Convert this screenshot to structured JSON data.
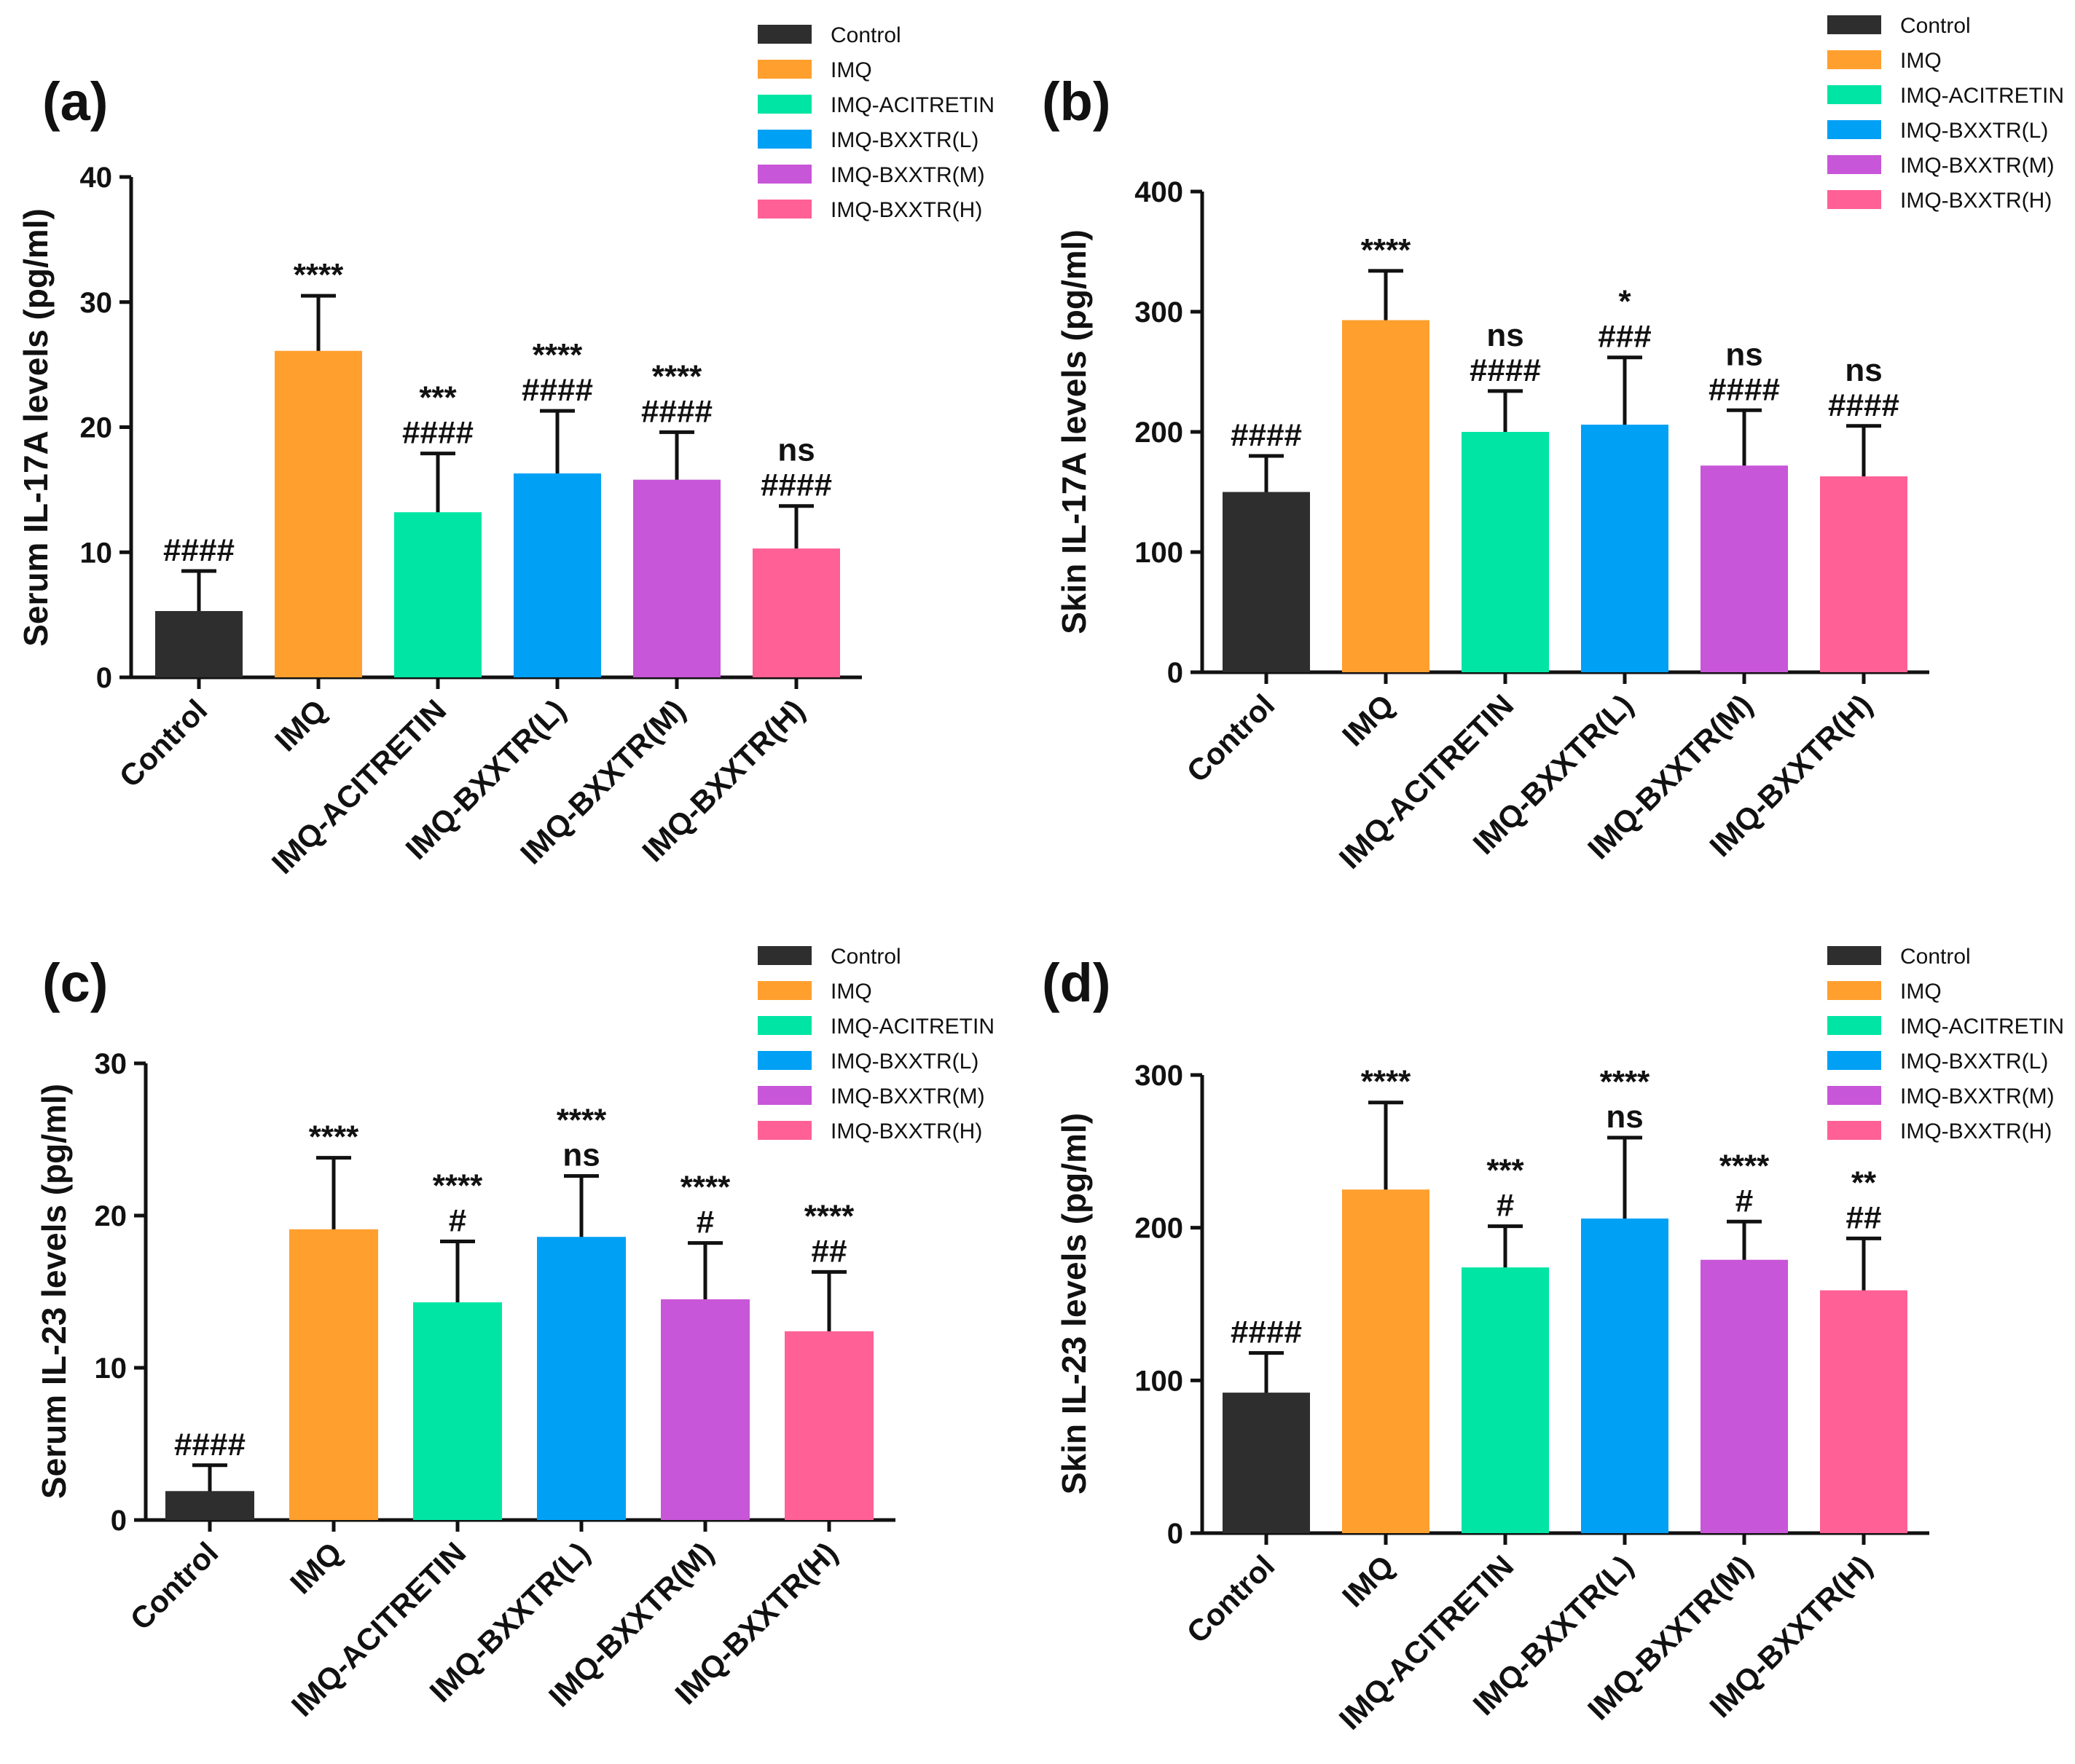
{
  "chart_data": [
    {
      "panel": "(a)",
      "type": "bar",
      "ylabel": "Serum IL-17A levels (pg/ml)",
      "xlabel": "",
      "categories": [
        "Control",
        "IMQ",
        "IMQ-ACITRETIN",
        "IMQ-BXXTR(L)",
        "IMQ-BXXTR(M)",
        "IMQ-BXXTR(H)"
      ],
      "values": [
        5.3,
        26.1,
        13.2,
        16.3,
        15.8,
        10.3
      ],
      "errors": [
        3.2,
        4.4,
        4.7,
        5.0,
        3.8,
        3.4
      ],
      "ylim": [
        0,
        40
      ],
      "yticks": [
        0,
        10,
        20,
        30,
        40
      ],
      "annotations": [
        [
          "####"
        ],
        [
          "****"
        ],
        [
          "***",
          "####"
        ],
        [
          "****",
          "####"
        ],
        [
          "****",
          "####"
        ],
        [
          "ns",
          "####"
        ]
      ],
      "legend": [
        "Control",
        "IMQ",
        "IMQ-ACITRETIN",
        "IMQ-BXXTR(L)",
        "IMQ-BXXTR(M)",
        "IMQ-BXXTR(H)"
      ],
      "legend_position": "top-right"
    },
    {
      "panel": "(b)",
      "type": "bar",
      "ylabel": "Skin IL-17A levels (pg/ml)",
      "xlabel": "",
      "categories": [
        "Control",
        "IMQ",
        "IMQ-ACITRETIN",
        "IMQ-BXXTR(L)",
        "IMQ-BXXTR(M)",
        "IMQ-BXXTR(H)"
      ],
      "values": [
        150,
        293,
        200,
        206,
        172,
        163
      ],
      "errors": [
        30,
        41,
        34,
        56,
        46,
        42
      ],
      "ylim": [
        0,
        400
      ],
      "yticks": [
        0,
        100,
        200,
        300,
        400
      ],
      "annotations": [
        [
          "####"
        ],
        [
          "****"
        ],
        [
          "ns",
          "####"
        ],
        [
          "*",
          "###"
        ],
        [
          "ns",
          "####"
        ],
        [
          "ns",
          "####"
        ]
      ],
      "legend": [
        "Control",
        "IMQ",
        "IMQ-ACITRETIN",
        "IMQ-BXXTR(L)",
        "IMQ-BXXTR(M)",
        "IMQ-BXXTR(H)"
      ],
      "legend_position": "top-right"
    },
    {
      "panel": "(c)",
      "type": "bar",
      "ylabel": "Serum IL-23 levels (pg/ml)",
      "xlabel": "",
      "categories": [
        "Control",
        "IMQ",
        "IMQ-ACITRETIN",
        "IMQ-BXXTR(L)",
        "IMQ-BXXTR(M)",
        "IMQ-BXXTR(H)"
      ],
      "values": [
        1.9,
        19.1,
        14.3,
        18.6,
        14.5,
        12.4
      ],
      "errors": [
        1.7,
        4.7,
        4.0,
        4.0,
        3.7,
        3.9
      ],
      "ylim": [
        0,
        30
      ],
      "yticks": [
        0,
        10,
        20,
        30
      ],
      "annotations": [
        [
          "####"
        ],
        [
          "****"
        ],
        [
          "****",
          "#"
        ],
        [
          "****",
          "ns"
        ],
        [
          "****",
          "#"
        ],
        [
          "****",
          "##"
        ]
      ],
      "legend": [
        "Control",
        "IMQ",
        "IMQ-ACITRETIN",
        "IMQ-BXXTR(L)",
        "IMQ-BXXTR(M)",
        "IMQ-BXXTR(H)"
      ],
      "legend_position": "top-right"
    },
    {
      "panel": "(d)",
      "type": "bar",
      "ylabel": "Skin IL-23 levels (pg/ml)",
      "xlabel": "",
      "categories": [
        "Control",
        "IMQ",
        "IMQ-ACITRETIN",
        "IMQ-BXXTR(L)",
        "IMQ-BXXTR(M)",
        "IMQ-BXXTR(H)"
      ],
      "values": [
        92,
        225,
        174,
        206,
        179,
        159
      ],
      "errors": [
        26,
        57,
        27,
        53,
        25,
        34
      ],
      "ylim": [
        0,
        300
      ],
      "yticks": [
        0,
        100,
        200,
        300
      ],
      "annotations": [
        [
          "####"
        ],
        [
          "****"
        ],
        [
          "***",
          "#"
        ],
        [
          "****",
          "ns"
        ],
        [
          "****",
          "#"
        ],
        [
          "**",
          "##"
        ]
      ],
      "legend": [
        "Control",
        "IMQ",
        "IMQ-ACITRETIN",
        "IMQ-BXXTR(L)",
        "IMQ-BXXTR(M)",
        "IMQ-BXXTR(H)"
      ],
      "legend_position": "top-right"
    }
  ],
  "colors": {
    "Control": "#2e2e2e",
    "IMQ": "#ff9f2e",
    "IMQ-ACITRETIN": "#00e5a4",
    "IMQ-BXXTR(L)": "#00a0f5",
    "IMQ-BXXTR(M)": "#c856d8",
    "IMQ-BXXTR(H)": "#ff6095",
    "axis": "#111111"
  }
}
